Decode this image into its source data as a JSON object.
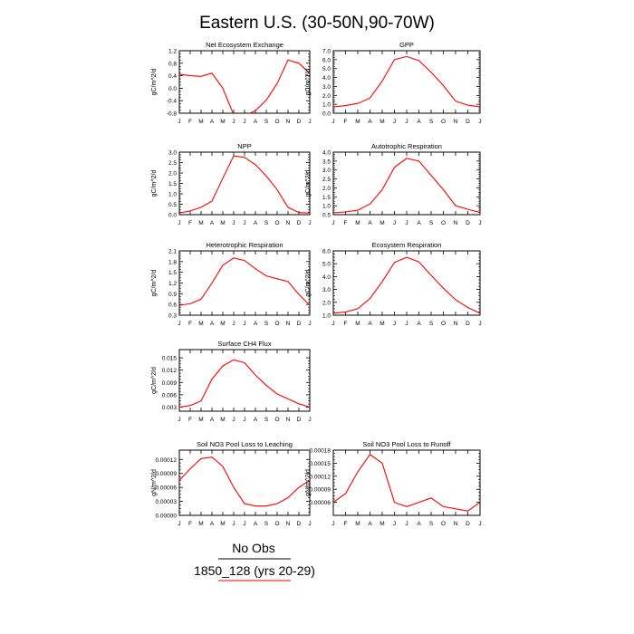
{
  "title": "Eastern U.S. (30-50N,90-70W)",
  "months": [
    "J",
    "F",
    "M",
    "A",
    "M",
    "J",
    "J",
    "A",
    "S",
    "O",
    "N",
    "D",
    "J"
  ],
  "legend": {
    "obs_label": "No Obs",
    "model_label": "1850_128 (yrs 20-29)",
    "obs_color": "#000000",
    "model_color": "#ff0000"
  },
  "colors": {
    "series": "#ff0000",
    "axis": "#000000"
  },
  "chart_data": [
    {
      "type": "line",
      "title": "Net Ecosystem Exchange",
      "ylabel": "gC/m^2/d",
      "ylim": [
        -0.8,
        1.2
      ],
      "yticks": [
        -0.8,
        -0.4,
        0.0,
        0.4,
        0.8,
        1.2
      ],
      "ytick_labels": [
        "-0.8",
        "-0.4",
        "0.0",
        "0.4",
        "0.8",
        "1.2"
      ],
      "series": [
        {
          "values": [
            0.45,
            0.4,
            0.38,
            0.48,
            0.0,
            -0.85,
            -0.87,
            -0.72,
            -0.38,
            0.15,
            0.9,
            0.8,
            0.48
          ]
        }
      ]
    },
    {
      "type": "line",
      "title": "GPP",
      "ylabel": "gC/m^2/d",
      "ylim": [
        0.0,
        7.0
      ],
      "yticks": [
        0.0,
        1.0,
        2.0,
        3.0,
        4.0,
        5.0,
        6.0,
        7.0
      ],
      "ytick_labels": [
        "0.0",
        "1.0",
        "2.0",
        "3.0",
        "4.0",
        "5.0",
        "6.0",
        "7.0"
      ],
      "series": [
        {
          "values": [
            0.7,
            0.85,
            1.1,
            1.7,
            3.6,
            6.0,
            6.35,
            5.9,
            4.6,
            3.1,
            1.35,
            0.9,
            0.72
          ]
        }
      ]
    },
    {
      "type": "line",
      "title": "NPP",
      "ylabel": "gC/m^2/d",
      "ylim": [
        0.0,
        3.0
      ],
      "yticks": [
        0.0,
        0.5,
        1.0,
        1.5,
        2.0,
        2.5,
        3.0
      ],
      "ytick_labels": [
        "0.0",
        "0.5",
        "1.0",
        "1.5",
        "2.0",
        "2.5",
        "3.0"
      ],
      "series": [
        {
          "values": [
            0.08,
            0.18,
            0.35,
            0.65,
            1.75,
            2.82,
            2.75,
            2.4,
            1.85,
            1.2,
            0.35,
            0.1,
            0.08
          ]
        }
      ]
    },
    {
      "type": "line",
      "title": "Autotrophic Respiration",
      "ylabel": "gC/m^2/d",
      "ylim": [
        0.5,
        4.0
      ],
      "yticks": [
        0.5,
        1.0,
        1.5,
        2.0,
        2.5,
        3.0,
        3.5,
        4.0
      ],
      "ytick_labels": [
        "0.5",
        "1.0",
        "1.5",
        "2.0",
        "2.5",
        "3.0",
        "3.5",
        "4.0"
      ],
      "series": [
        {
          "values": [
            0.6,
            0.65,
            0.75,
            1.1,
            1.9,
            3.15,
            3.65,
            3.5,
            2.7,
            1.9,
            1.0,
            0.8,
            0.62
          ]
        }
      ]
    },
    {
      "type": "line",
      "title": "Heterotrophic Respiration",
      "ylabel": "gC/m^2/d",
      "ylim": [
        0.3,
        2.1
      ],
      "yticks": [
        0.3,
        0.6,
        0.9,
        1.2,
        1.5,
        1.8,
        2.1
      ],
      "ytick_labels": [
        "0.3",
        "0.6",
        "0.9",
        "1.2",
        "1.5",
        "1.8",
        "2.1"
      ],
      "series": [
        {
          "values": [
            0.58,
            0.62,
            0.75,
            1.2,
            1.7,
            1.9,
            1.83,
            1.6,
            1.4,
            1.32,
            1.24,
            0.88,
            0.58
          ]
        }
      ]
    },
    {
      "type": "line",
      "title": "Ecosystem Respiration",
      "ylabel": "gC/m^2/d",
      "ylim": [
        1.0,
        6.0
      ],
      "yticks": [
        1.0,
        2.0,
        3.0,
        4.0,
        5.0,
        6.0
      ],
      "ytick_labels": [
        "1.0",
        "2.0",
        "3.0",
        "4.0",
        "5.0",
        "6.0"
      ],
      "series": [
        {
          "values": [
            1.15,
            1.25,
            1.5,
            2.3,
            3.6,
            5.1,
            5.5,
            5.15,
            4.1,
            3.1,
            2.2,
            1.6,
            1.15
          ]
        }
      ]
    },
    {
      "type": "line",
      "title": "Surface CH4 Flux",
      "ylabel": "gC/m^2/d",
      "ylim": [
        0.002,
        0.017
      ],
      "yticks": [
        0.003,
        0.006,
        0.009,
        0.012,
        0.015
      ],
      "ytick_labels": [
        "0.003",
        "0.006",
        "0.009",
        "0.012",
        "0.015"
      ],
      "series": [
        {
          "values": [
            0.003,
            0.0034,
            0.0045,
            0.0098,
            0.013,
            0.0145,
            0.0138,
            0.0108,
            0.0083,
            0.0062,
            0.005,
            0.0038,
            0.003
          ]
        }
      ]
    },
    {
      "type": "line",
      "title": "Soil NO3 Pool Loss to Leaching",
      "ylabel": "gN/m^2/d",
      "ylim": [
        0.0,
        0.00014
      ],
      "yticks": [
        0.0,
        3e-05,
        6e-05,
        9e-05,
        0.00012
      ],
      "ytick_labels": [
        "0.00000",
        "0.00003",
        "0.00006",
        "0.00009",
        "0.00012"
      ],
      "series": [
        {
          "values": [
            7.5e-05,
            0.0001,
            0.000122,
            0.000125,
            0.000105,
            6e-05,
            2.5e-05,
            2e-05,
            2e-05,
            2.5e-05,
            3.8e-05,
            6e-05,
            7.5e-05
          ]
        }
      ]
    },
    {
      "type": "line",
      "title": "Soil NO3 Pool Loss to Runoff",
      "ylabel": "gN/m^2/d",
      "ylim": [
        3e-05,
        0.00018
      ],
      "yticks": [
        6e-05,
        9e-05,
        0.00012,
        0.00015,
        0.00018
      ],
      "ytick_labels": [
        "0.00006",
        "0.00009",
        "0.00012",
        "0.00015",
        "0.00018"
      ],
      "series": [
        {
          "values": [
            6e-05,
            8e-05,
            0.00013,
            0.00017,
            0.00015,
            6e-05,
            5e-05,
            6e-05,
            7e-05,
            5e-05,
            4.5e-05,
            4e-05,
            6e-05
          ]
        }
      ]
    }
  ]
}
